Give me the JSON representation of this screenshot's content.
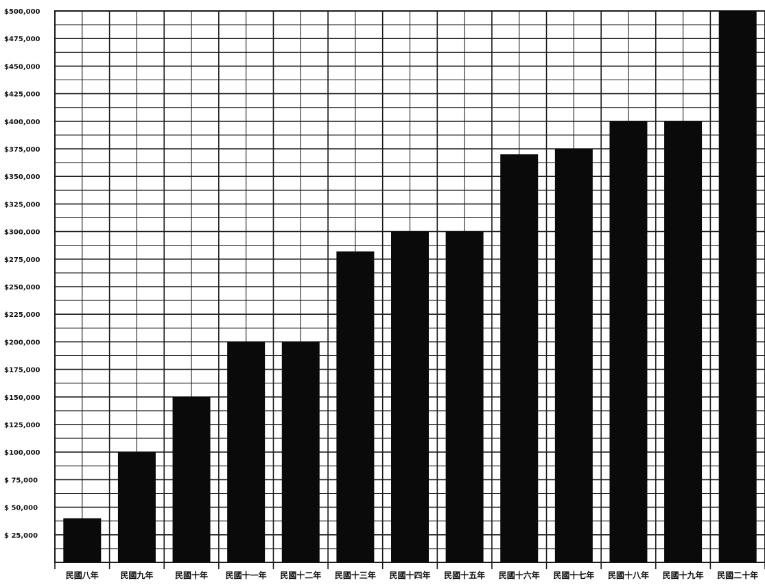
{
  "chart_data": {
    "type": "bar",
    "title": "",
    "xlabel": "",
    "ylabel": "",
    "ylim": [
      0,
      500000
    ],
    "grid": true,
    "y_ticks": [
      {
        "value": 25000,
        "label": "$ 25,000"
      },
      {
        "value": 50000,
        "label": "$ 50,000"
      },
      {
        "value": 75000,
        "label": "$ 75,000"
      },
      {
        "value": 100000,
        "label": "$100,000"
      },
      {
        "value": 125000,
        "label": "$125,000"
      },
      {
        "value": 150000,
        "label": "$150,000"
      },
      {
        "value": 175000,
        "label": "$175,000"
      },
      {
        "value": 200000,
        "label": "$200,000"
      },
      {
        "value": 225000,
        "label": "$225,000"
      },
      {
        "value": 250000,
        "label": "$250,000"
      },
      {
        "value": 275000,
        "label": "$275,000"
      },
      {
        "value": 300000,
        "label": "$300,000"
      },
      {
        "value": 325000,
        "label": "$325,000"
      },
      {
        "value": 350000,
        "label": "$350,000"
      },
      {
        "value": 375000,
        "label": "$375,000"
      },
      {
        "value": 400000,
        "label": "$400,000"
      },
      {
        "value": 425000,
        "label": "$425,000"
      },
      {
        "value": 450000,
        "label": "$450,000"
      },
      {
        "value": 475000,
        "label": "$475,000"
      },
      {
        "value": 500000,
        "label": "$500,000"
      }
    ],
    "categories": [
      "民國八年",
      "民國九年",
      "民國十年",
      "民國十一年",
      "民國十二年",
      "民國十三年",
      "民國十四年",
      "民國十五年",
      "民國十六年",
      "民國十七年",
      "民國十八年",
      "民國十九年",
      "民國二十年"
    ],
    "values": [
      40000,
      100000,
      150000,
      200000,
      200000,
      282000,
      300000,
      300000,
      370000,
      375000,
      400000,
      400000,
      500000
    ],
    "bar_color": "#0a0a0a",
    "grid_color": "#1a1a1a"
  }
}
